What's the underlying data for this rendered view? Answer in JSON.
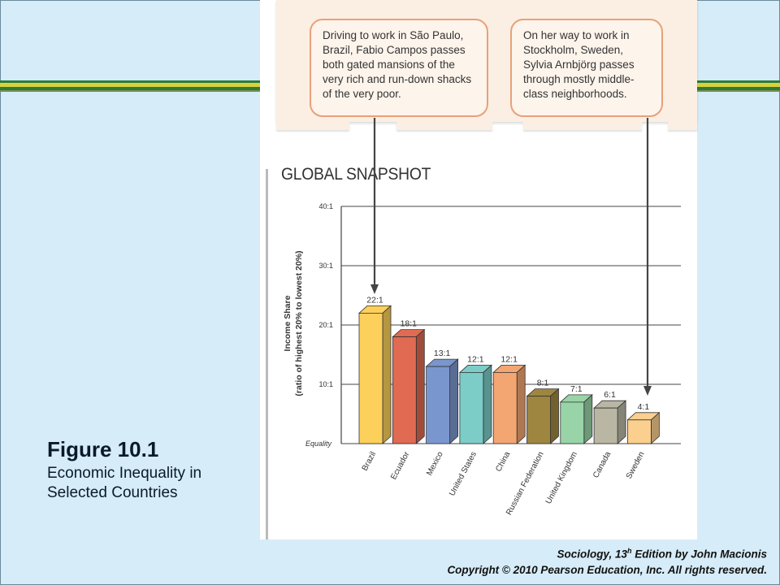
{
  "callouts": {
    "left": "Driving to work in São Paulo, Brazil, Fabio Campos passes both gated mansions of the very rich and run-down shacks of the very poor.",
    "right": "On her way to work in Stockholm, Sweden, Sylvia Arnbjörg passes through mostly middle-class neighborhoods."
  },
  "figure": {
    "label": "Figure 10.1",
    "caption": "Economic Inequality in Selected Countries"
  },
  "credit": {
    "line1_italic": "Sociology, 13",
    "line1_sup": "h",
    "line1_italic2": " Edition",
    "line1_rest": " by John Macionis",
    "line2": "Copyright © 2010 Pearson Education, Inc.  All rights reserved."
  },
  "chart_data": {
    "type": "bar",
    "title": "GLOBAL SNAPSHOT",
    "ylabel_line1": "Income Share",
    "ylabel_line2": "(ratio of highest 20% to lowest 20%)",
    "ytick_labels": [
      "Equality",
      "10:1",
      "20:1",
      "30:1",
      "40:1"
    ],
    "ytick_values": [
      0,
      10,
      20,
      30,
      40
    ],
    "ylim": [
      0,
      40
    ],
    "grid": true,
    "categories": [
      "Brazil",
      "Ecuador",
      "Mexico",
      "United States",
      "China",
      "Russian Federation",
      "United Kingdom",
      "Canada",
      "Sweden"
    ],
    "values": [
      22,
      18,
      13,
      12,
      12,
      8,
      7,
      6,
      4
    ],
    "value_labels": [
      "22:1",
      "18:1",
      "13:1",
      "12:1",
      "12:1",
      "8:1",
      "7:1",
      "6:1",
      "4:1"
    ],
    "colors": [
      "#fcd05a",
      "#e06a52",
      "#7a96ce",
      "#7cccc8",
      "#f3a672",
      "#9e8640",
      "#98d4a8",
      "#b9b7a4",
      "#fbcf8e"
    ]
  }
}
